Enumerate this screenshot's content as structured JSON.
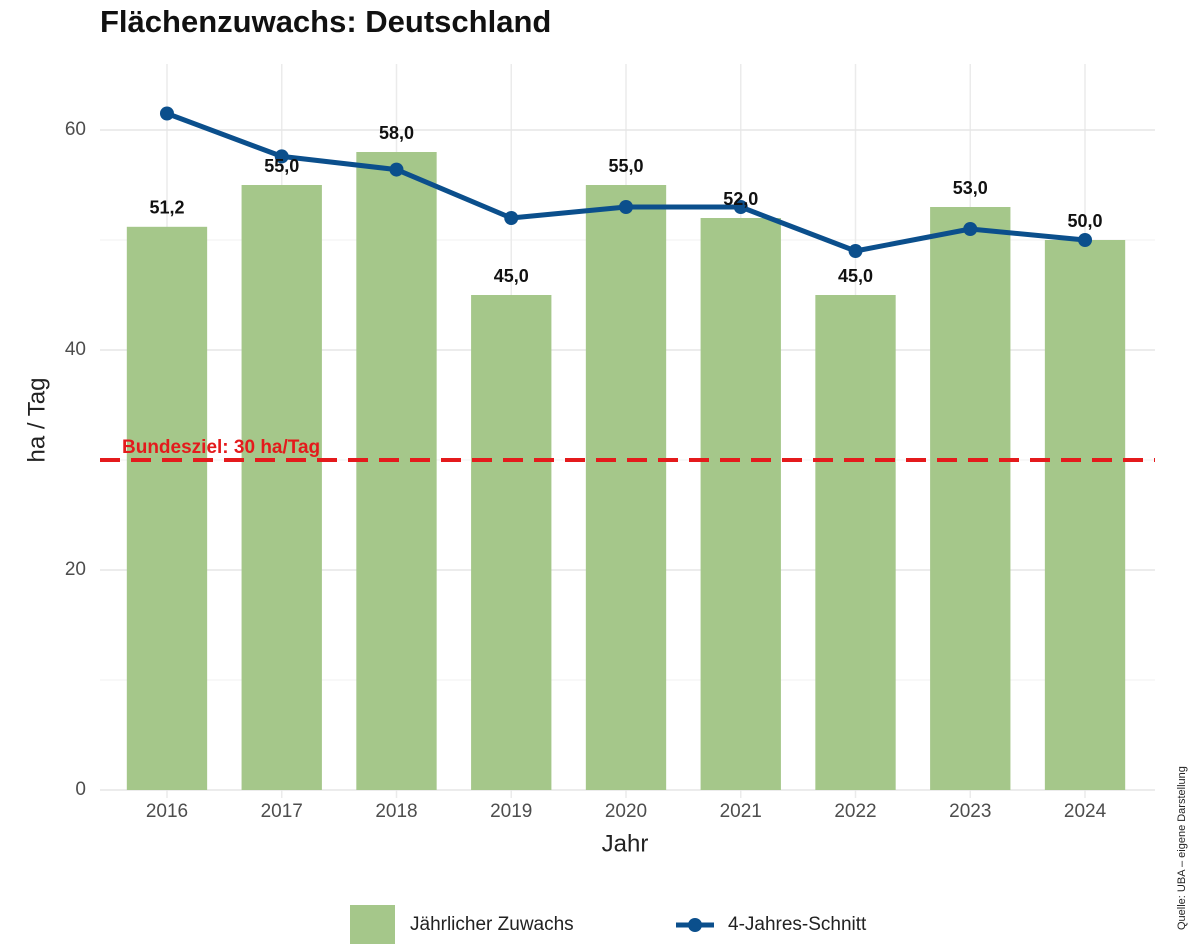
{
  "chart_data": {
    "type": "bar",
    "title": "Flächenzuwachs: Deutschland",
    "x_label": "Jahr",
    "y_label": "ha / Tag",
    "caption": "Quelle: UBA – eigene Darstellung",
    "categories": [
      "2016",
      "2017",
      "2018",
      "2019",
      "2020",
      "2021",
      "2022",
      "2023",
      "2024"
    ],
    "series": [
      {
        "name": "Jährlicher Zuwachs",
        "type": "bar",
        "color": "#a5c78a",
        "values": [
          51.2,
          55,
          58,
          45,
          55,
          52,
          45,
          53,
          50
        ],
        "value_labels": [
          "51,2",
          "55,0",
          "58,0",
          "45,0",
          "55,0",
          "52,0",
          "45,0",
          "53,0",
          "50,0"
        ]
      },
      {
        "name": "4-Jahres-Schnitt",
        "type": "line",
        "color": "#0b4f8c",
        "values": [
          61.5,
          57.6,
          56.4,
          52,
          53,
          53,
          49,
          51,
          50
        ]
      }
    ],
    "reference_line": {
      "value": 30,
      "label": "Bundesziel: 30 ha/Tag",
      "color": "#e41a1c"
    },
    "ylim": [
      0,
      66
    ],
    "yticks": [
      0,
      20,
      40,
      60
    ],
    "y_minor_ticks": [
      10,
      30,
      50
    ],
    "grid": true,
    "legend": "bottom"
  }
}
